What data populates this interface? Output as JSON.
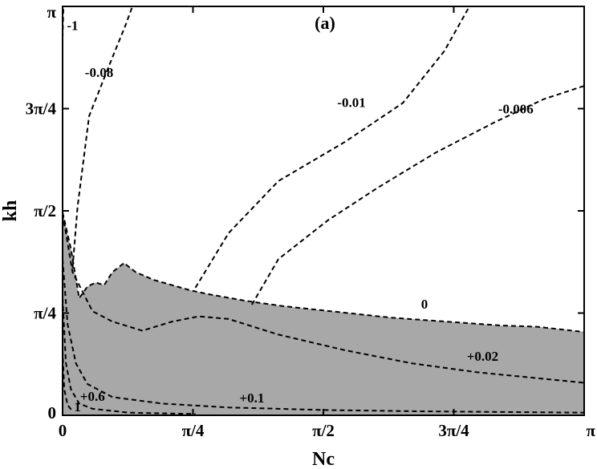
{
  "chart_data": {
    "type": "contour",
    "panel_label": "(a)",
    "xlabel": "Nc",
    "ylabel": "kh",
    "xlim": [
      0,
      3.14159
    ],
    "ylim": [
      0,
      3.14159
    ],
    "x_ticks": [
      {
        "value": 0,
        "label": "0"
      },
      {
        "value": 0.7854,
        "label": "π/4"
      },
      {
        "value": 1.5708,
        "label": "π/2"
      },
      {
        "value": 2.3562,
        "label": "3π/4"
      },
      {
        "value": 3.14159,
        "label": "π"
      }
    ],
    "y_ticks": [
      {
        "value": 0,
        "label": "0"
      },
      {
        "value": 0.7854,
        "label": "π/4"
      },
      {
        "value": 1.5708,
        "label": "π/2"
      },
      {
        "value": 2.3562,
        "label": "3π/4"
      },
      {
        "value": 3.14159,
        "label": "π"
      }
    ],
    "shaded_region_color": "#a8a8a8",
    "shaded_region_boundary": [
      [
        0,
        1.56
      ],
      [
        0.05,
        1.28
      ],
      [
        0.1,
        0.9
      ],
      [
        0.15,
        0.99
      ],
      [
        0.2,
        1.02
      ],
      [
        0.25,
        1.0
      ],
      [
        0.3,
        1.1
      ],
      [
        0.37,
        1.17
      ],
      [
        0.44,
        1.1
      ],
      [
        0.55,
        1.04
      ],
      [
        0.66,
        1.0
      ],
      [
        0.77,
        0.96
      ],
      [
        0.88,
        0.93
      ],
      [
        1.1,
        0.88
      ],
      [
        1.32,
        0.84
      ],
      [
        1.54,
        0.81
      ],
      [
        1.76,
        0.78
      ],
      [
        1.98,
        0.75
      ],
      [
        2.2,
        0.73
      ],
      [
        2.42,
        0.71
      ],
      [
        2.64,
        0.69
      ],
      [
        2.86,
        0.68
      ],
      [
        3.14159,
        0.64
      ]
    ],
    "contours": [
      {
        "label": "-1",
        "points": [
          [
            0.0,
            2.9
          ],
          [
            0.005,
            3.14
          ]
        ],
        "label_at": [
          0.06,
          2.96
        ]
      },
      {
        "label": "-0.08",
        "points": [
          [
            0.06,
            1.13
          ],
          [
            0.09,
            1.6
          ],
          [
            0.16,
            2.3
          ],
          [
            0.3,
            2.75
          ],
          [
            0.38,
            3.0
          ],
          [
            0.42,
            3.14
          ]
        ],
        "label_at": [
          0.22,
          2.6
        ]
      },
      {
        "label": "-0.01",
        "points": [
          [
            0.8,
            0.98
          ],
          [
            1.0,
            1.4
          ],
          [
            1.3,
            1.8
          ],
          [
            1.7,
            2.1
          ],
          [
            2.05,
            2.4
          ],
          [
            2.3,
            2.8
          ],
          [
            2.45,
            3.14
          ]
        ],
        "label_at": [
          1.74,
          2.37
        ]
      },
      {
        "label": "-0.006",
        "points": [
          [
            1.14,
            0.85
          ],
          [
            1.3,
            1.2
          ],
          [
            1.6,
            1.5
          ],
          [
            1.9,
            1.75
          ],
          [
            2.25,
            2.02
          ],
          [
            2.6,
            2.25
          ],
          [
            2.9,
            2.43
          ],
          [
            3.14,
            2.53
          ]
        ],
        "label_at": [
          2.73,
          2.32
        ]
      },
      {
        "label": "0",
        "points": [
          [
            0.0,
            1.56
          ],
          [
            0.05,
            1.28
          ],
          [
            0.1,
            0.9
          ],
          [
            0.15,
            0.99
          ],
          [
            0.2,
            1.02
          ],
          [
            0.25,
            1.0
          ],
          [
            0.3,
            1.1
          ],
          [
            0.37,
            1.17
          ],
          [
            0.44,
            1.1
          ],
          [
            0.55,
            1.04
          ],
          [
            0.66,
            1.0
          ],
          [
            0.77,
            0.96
          ],
          [
            0.88,
            0.93
          ],
          [
            1.1,
            0.88
          ],
          [
            1.32,
            0.84
          ],
          [
            1.54,
            0.81
          ],
          [
            1.76,
            0.78
          ],
          [
            1.98,
            0.75
          ],
          [
            2.2,
            0.73
          ],
          [
            2.42,
            0.71
          ],
          [
            2.64,
            0.69
          ],
          [
            2.86,
            0.68
          ],
          [
            3.14159,
            0.64
          ]
        ],
        "label_at": [
          2.18,
          0.82
        ]
      },
      {
        "label": "+0.02",
        "points": [
          [
            0.0,
            1.55
          ],
          [
            0.06,
            1.1
          ],
          [
            0.18,
            0.8
          ],
          [
            0.3,
            0.72
          ],
          [
            0.48,
            0.65
          ],
          [
            0.66,
            0.72
          ],
          [
            0.82,
            0.76
          ],
          [
            1.0,
            0.74
          ],
          [
            1.3,
            0.62
          ],
          [
            1.7,
            0.5
          ],
          [
            2.1,
            0.4
          ],
          [
            2.5,
            0.33
          ],
          [
            2.9,
            0.28
          ],
          [
            3.14,
            0.25
          ]
        ],
        "label_at": [
          2.53,
          0.42
        ]
      },
      {
        "label": "+0.1",
        "points": [
          [
            0.0,
            1.2
          ],
          [
            0.03,
            0.7
          ],
          [
            0.08,
            0.4
          ],
          [
            0.15,
            0.24
          ],
          [
            0.3,
            0.14
          ],
          [
            0.6,
            0.09
          ],
          [
            1.0,
            0.06
          ],
          [
            1.6,
            0.04
          ],
          [
            2.2,
            0.03
          ],
          [
            3.14,
            0.02
          ]
        ],
        "label_at": [
          1.14,
          0.1
        ]
      },
      {
        "label": "+0.6",
        "points": [
          [
            0.0,
            0.9
          ],
          [
            0.02,
            0.4
          ],
          [
            0.05,
            0.2
          ],
          [
            0.1,
            0.09
          ],
          [
            0.18,
            0.05
          ],
          [
            0.4,
            0.02
          ],
          [
            0.8,
            0.01
          ]
        ],
        "label_at": [
          0.18,
          0.11
        ]
      },
      {
        "label": "1",
        "points": [
          [
            0.0,
            0.5
          ],
          [
            0.01,
            0.2
          ],
          [
            0.03,
            0.08
          ],
          [
            0.06,
            0.03
          ]
        ],
        "label_at": [
          0.09,
          0.03
        ]
      }
    ]
  }
}
